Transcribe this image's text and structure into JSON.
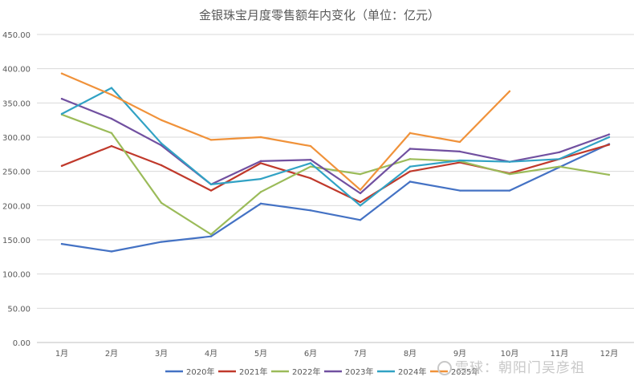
{
  "chart_data": {
    "type": "line",
    "title": "金银珠宝月度零售额年内变化（单位：亿元）",
    "xlabel": "",
    "ylabel": "",
    "categories": [
      "1月",
      "2月",
      "3月",
      "4月",
      "5月",
      "6月",
      "7月",
      "8月",
      "9月",
      "10月",
      "11月",
      "12月"
    ],
    "ylim": [
      0,
      450
    ],
    "yticks": [
      "0.00",
      "50.00",
      "100.00",
      "150.00",
      "200.00",
      "250.00",
      "300.00",
      "350.00",
      "400.00",
      "450.00"
    ],
    "grid": true,
    "legend_position": "bottom",
    "series": [
      {
        "name": "2020年",
        "color": "#4472c4",
        "values": [
          144,
          133,
          147,
          155,
          203,
          193,
          179,
          235,
          222,
          222,
          256,
          290
        ]
      },
      {
        "name": "2021年",
        "color": "#c0392b",
        "values": [
          258,
          287,
          259,
          222,
          262,
          240,
          205,
          250,
          263,
          247,
          268,
          289
        ]
      },
      {
        "name": "2022年",
        "color": "#9bbb59",
        "values": [
          333,
          306,
          204,
          158,
          220,
          257,
          246,
          268,
          265,
          246,
          257,
          245
        ]
      },
      {
        "name": "2023年",
        "color": "#7150a0",
        "values": [
          356,
          327,
          288,
          231,
          265,
          267,
          218,
          283,
          279,
          264,
          278,
          304
        ]
      },
      {
        "name": "2024年",
        "color": "#31a2c4",
        "values": [
          334,
          372,
          291,
          231,
          239,
          262,
          200,
          257,
          266,
          264,
          268,
          300
        ]
      },
      {
        "name": "2025年",
        "color": "#f0923a",
        "values": [
          393,
          362,
          325,
          296,
          300,
          287,
          223,
          306,
          293,
          367,
          null,
          null
        ]
      }
    ]
  },
  "watermark": {
    "text": "雪球：朝阳门吴彦祖"
  }
}
